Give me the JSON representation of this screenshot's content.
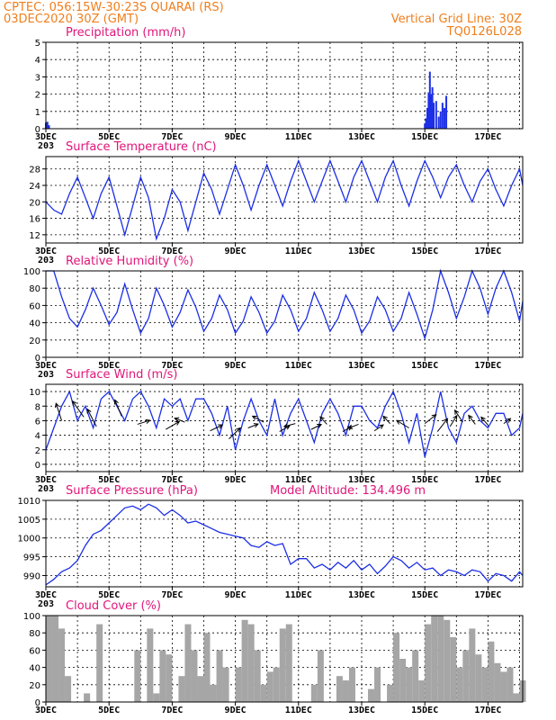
{
  "header": {
    "line1": "CPTEC:  056:15W-30:23S  QUARAI (RS)",
    "line2": "03DEC2020 30Z (GMT)",
    "right1": "Vertical Grid Line: 30Z",
    "right2": "TQ0126L028"
  },
  "colors": {
    "header": "#f07e1c",
    "title": "#e0157a",
    "series": "#1c2fe6",
    "cloud": "#a6a6a6",
    "arrow": "#000000"
  },
  "x_axis": {
    "tick_labels": [
      "3DEC",
      "5DEC",
      "7DEC",
      "9DEC",
      "11DEC",
      "13DEC",
      "15DEC",
      "17DEC"
    ],
    "tick_days": [
      3,
      5,
      7,
      9,
      11,
      13,
      15,
      17
    ],
    "range_days": [
      3,
      18.1
    ],
    "grid_every_days": 1,
    "start_label_cut": "203"
  },
  "chart_data": [
    {
      "id": "precip",
      "type": "bar",
      "title": "Precipitation (mm/h)",
      "ylim": [
        0,
        5
      ],
      "yticks": [
        0,
        1,
        2,
        3,
        4,
        5
      ],
      "grid": true,
      "x": [
        3.0,
        3.05,
        3.1,
        15.0,
        15.04,
        15.08,
        15.12,
        15.16,
        15.2,
        15.24,
        15.28,
        15.36,
        15.44,
        15.5,
        15.56,
        15.62,
        15.68
      ],
      "values": [
        0.35,
        0.4,
        0.2,
        0.3,
        0.6,
        1.2,
        2.1,
        3.3,
        2.0,
        2.4,
        1.5,
        1.6,
        0.7,
        1.0,
        1.5,
        1.2,
        1.9
      ]
    },
    {
      "id": "temp",
      "type": "line",
      "title": "Surface Temperature (nC)",
      "ylim": [
        10,
        31
      ],
      "yticks": [
        12,
        16,
        20,
        24,
        28
      ],
      "grid": true,
      "x": [
        3.0,
        3.25,
        3.5,
        3.75,
        4.0,
        4.25,
        4.5,
        4.75,
        5.0,
        5.25,
        5.5,
        5.75,
        6.0,
        6.25,
        6.5,
        6.75,
        7.0,
        7.25,
        7.5,
        7.75,
        8.0,
        8.25,
        8.5,
        8.75,
        9.0,
        9.25,
        9.5,
        9.75,
        10.0,
        10.25,
        10.5,
        10.75,
        11.0,
        11.25,
        11.5,
        11.75,
        12.0,
        12.25,
        12.5,
        12.75,
        13.0,
        13.25,
        13.5,
        13.75,
        14.0,
        14.25,
        14.5,
        14.75,
        15.0,
        15.25,
        15.5,
        15.75,
        16.0,
        16.25,
        16.5,
        16.75,
        17.0,
        17.25,
        17.5,
        17.75,
        18.0,
        18.1
      ],
      "values": [
        20,
        18,
        17,
        22,
        26,
        21,
        16,
        22,
        26,
        19,
        12,
        19,
        26,
        21,
        11,
        16,
        23,
        20,
        13,
        20,
        27,
        23,
        17,
        23,
        29,
        24,
        18,
        24,
        29,
        24,
        19,
        25,
        30,
        25,
        20,
        25,
        30,
        25,
        20,
        26,
        30,
        25,
        20,
        26,
        30,
        24,
        19,
        25,
        30,
        26,
        21,
        26,
        29,
        24,
        20,
        25,
        28,
        23,
        19,
        24,
        28,
        24
      ]
    },
    {
      "id": "rh",
      "type": "line",
      "title": "Relative Humidity (%)",
      "ylim": [
        0,
        100
      ],
      "yticks": [
        0,
        20,
        40,
        60,
        80,
        100
      ],
      "grid": true,
      "x": [
        3.0,
        3.25,
        3.5,
        3.75,
        4.0,
        4.25,
        4.5,
        4.75,
        5.0,
        5.25,
        5.5,
        5.75,
        6.0,
        6.25,
        6.5,
        6.75,
        7.0,
        7.25,
        7.5,
        7.75,
        8.0,
        8.25,
        8.5,
        8.75,
        9.0,
        9.25,
        9.5,
        9.75,
        10.0,
        10.25,
        10.5,
        10.75,
        11.0,
        11.25,
        11.5,
        11.75,
        12.0,
        12.25,
        12.5,
        12.75,
        13.0,
        13.25,
        13.5,
        13.75,
        14.0,
        14.25,
        14.5,
        14.75,
        15.0,
        15.25,
        15.5,
        15.75,
        16.0,
        16.25,
        16.5,
        16.75,
        17.0,
        17.25,
        17.5,
        17.75,
        18.0,
        18.1
      ],
      "values": [
        100,
        100,
        70,
        45,
        35,
        55,
        80,
        60,
        38,
        52,
        85,
        55,
        28,
        45,
        80,
        60,
        35,
        52,
        78,
        58,
        30,
        45,
        72,
        55,
        28,
        42,
        70,
        52,
        28,
        42,
        72,
        55,
        30,
        45,
        75,
        55,
        30,
        45,
        72,
        55,
        28,
        42,
        70,
        55,
        30,
        45,
        75,
        50,
        22,
        55,
        100,
        75,
        45,
        70,
        100,
        80,
        50,
        80,
        100,
        75,
        42,
        65
      ]
    },
    {
      "id": "wind",
      "type": "line",
      "title": "Surface Wind (m/s)",
      "ylim": [
        -1,
        11
      ],
      "yticks": [
        0,
        2,
        4,
        6,
        8,
        10
      ],
      "grid": true,
      "x": [
        3.0,
        3.25,
        3.5,
        3.75,
        4.0,
        4.25,
        4.5,
        4.75,
        5.0,
        5.25,
        5.5,
        5.75,
        6.0,
        6.25,
        6.5,
        6.75,
        7.0,
        7.25,
        7.5,
        7.75,
        8.0,
        8.25,
        8.5,
        8.75,
        9.0,
        9.25,
        9.5,
        9.75,
        10.0,
        10.25,
        10.5,
        10.75,
        11.0,
        11.25,
        11.5,
        11.75,
        12.0,
        12.25,
        12.5,
        12.75,
        13.0,
        13.25,
        13.5,
        13.75,
        14.0,
        14.25,
        14.5,
        14.75,
        15.0,
        15.25,
        15.5,
        15.75,
        16.0,
        16.25,
        16.5,
        16.75,
        17.0,
        17.25,
        17.5,
        17.75,
        18.0,
        18.1
      ],
      "values": [
        2,
        5,
        8,
        10,
        6,
        8,
        5,
        9,
        10,
        8,
        6,
        9,
        10,
        8,
        5,
        9,
        8,
        9,
        6,
        9,
        9,
        7,
        4,
        8,
        2,
        6,
        9,
        6,
        4,
        9,
        4,
        7,
        9,
        6,
        3,
        7,
        9,
        7,
        4,
        8,
        8,
        6,
        5,
        8,
        10,
        7,
        3,
        7,
        1,
        5,
        10,
        5,
        3,
        7,
        8,
        6,
        5,
        7,
        7,
        4,
        5,
        7
      ],
      "vectors": {
        "x": [
          3.5,
          4.2,
          4.6,
          5.4,
          5.9,
          6.8,
          7.4,
          8.2,
          8.8,
          9.4,
          9.9,
          10.4,
          10.9,
          11.4,
          11.9,
          12.4,
          12.9,
          13.4,
          13.9,
          14.5,
          15.0,
          15.4,
          15.8,
          16.2,
          16.6,
          17.0,
          17.5
        ],
        "y": [
          6.0,
          6.5,
          5.2,
          6.6,
          5.5,
          4.8,
          5.8,
          4.6,
          3.5,
          5.0,
          5.8,
          4.5,
          5.6,
          4.8,
          5.5,
          4.5,
          5.5,
          4.6,
          5.6,
          5.0,
          5.6,
          4.5,
          5.2,
          5.8,
          5.5,
          5.4,
          5.6
        ],
        "dx": [
          -0.25,
          -0.5,
          -0.4,
          -0.3,
          0.55,
          0.6,
          -0.45,
          0.55,
          0.5,
          0.45,
          -0.5,
          0.45,
          -0.5,
          0.45,
          -0.3,
          0.4,
          -0.45,
          0.4,
          -0.3,
          -0.55,
          0.5,
          0.45,
          0.3,
          -0.35,
          -0.3,
          -0.3,
          0.3
        ],
        "dy": [
          3.5,
          3.2,
          3.5,
          3.3,
          0.8,
          1.6,
          0.8,
          1.2,
          2.2,
          0.8,
          1.2,
          1.2,
          -0.6,
          1.0,
          1.5,
          1.0,
          -0.8,
          1.2,
          1.5,
          1.5,
          1.8,
          2.6,
          2.2,
          2.4,
          1.8,
          1.6,
          1.0
        ]
      }
    },
    {
      "id": "pressure",
      "type": "line",
      "title": "Surface Pressure (hPa)",
      "annotation": "Model Altitude: 134.496  m",
      "ylim": [
        987,
        1010
      ],
      "yticks": [
        990,
        995,
        1000,
        1005,
        1010
      ],
      "grid": true,
      "x": [
        3.0,
        3.25,
        3.5,
        3.75,
        4.0,
        4.25,
        4.5,
        4.75,
        5.0,
        5.25,
        5.5,
        5.75,
        6.0,
        6.25,
        6.5,
        6.75,
        7.0,
        7.25,
        7.5,
        7.75,
        8.0,
        8.25,
        8.5,
        8.75,
        9.0,
        9.25,
        9.5,
        9.75,
        10.0,
        10.25,
        10.5,
        10.75,
        11.0,
        11.25,
        11.5,
        11.75,
        12.0,
        12.25,
        12.5,
        12.75,
        13.0,
        13.25,
        13.5,
        13.75,
        14.0,
        14.25,
        14.5,
        14.75,
        15.0,
        15.25,
        15.5,
        15.75,
        16.0,
        16.25,
        16.5,
        16.75,
        17.0,
        17.25,
        17.5,
        17.75,
        18.0,
        18.1
      ],
      "values": [
        987.5,
        989,
        991,
        992,
        994,
        998,
        1001,
        1002,
        1004,
        1006,
        1008,
        1008.5,
        1007.5,
        1009,
        1008,
        1006,
        1007.5,
        1006,
        1004,
        1004.5,
        1003.5,
        1002.5,
        1001.5,
        1001,
        1000.5,
        1000,
        998,
        997.5,
        999,
        998,
        998.5,
        993,
        994.5,
        994.5,
        992,
        993,
        991.5,
        993.5,
        992,
        994,
        991.5,
        993,
        990.5,
        992.5,
        995,
        994,
        992,
        993.5,
        991.5,
        992,
        990,
        991.5,
        991,
        990,
        991.5,
        991,
        988.5,
        990.5,
        990,
        988.5,
        991,
        990
      ]
    },
    {
      "id": "cloud",
      "type": "area",
      "title": "Cloud Cover (%)",
      "ylim": [
        0,
        100
      ],
      "yticks": [
        0,
        20,
        40,
        60,
        80,
        100
      ],
      "grid": true,
      "x": [
        3.0,
        3.2,
        3.4,
        3.6,
        3.8,
        4.0,
        4.2,
        4.4,
        4.6,
        4.8,
        5.0,
        5.2,
        5.4,
        5.6,
        5.8,
        6.0,
        6.2,
        6.4,
        6.6,
        6.8,
        7.0,
        7.2,
        7.4,
        7.6,
        7.8,
        8.0,
        8.2,
        8.4,
        8.6,
        8.8,
        9.0,
        9.2,
        9.4,
        9.6,
        9.8,
        10.0,
        10.2,
        10.4,
        10.6,
        10.8,
        11.0,
        11.2,
        11.4,
        11.6,
        11.8,
        12.0,
        12.2,
        12.4,
        12.6,
        12.8,
        13.0,
        13.2,
        13.4,
        13.6,
        13.8,
        14.0,
        14.2,
        14.4,
        14.6,
        14.8,
        15.0,
        15.2,
        15.4,
        15.6,
        15.8,
        16.0,
        16.2,
        16.4,
        16.6,
        16.8,
        17.0,
        17.2,
        17.4,
        17.6,
        17.8,
        18.0
      ],
      "values": [
        100,
        100,
        85,
        30,
        0,
        0,
        10,
        0,
        90,
        0,
        0,
        0,
        0,
        0,
        60,
        0,
        85,
        10,
        60,
        55,
        0,
        30,
        90,
        60,
        30,
        80,
        20,
        60,
        40,
        0,
        40,
        95,
        90,
        60,
        20,
        35,
        40,
        85,
        90,
        0,
        0,
        0,
        20,
        60,
        0,
        0,
        30,
        25,
        40,
        0,
        0,
        15,
        40,
        0,
        20,
        80,
        50,
        40,
        60,
        25,
        90,
        100,
        100,
        95,
        75,
        40,
        60,
        85,
        55,
        40,
        70,
        45,
        35,
        40,
        10,
        25
      ]
    }
  ]
}
